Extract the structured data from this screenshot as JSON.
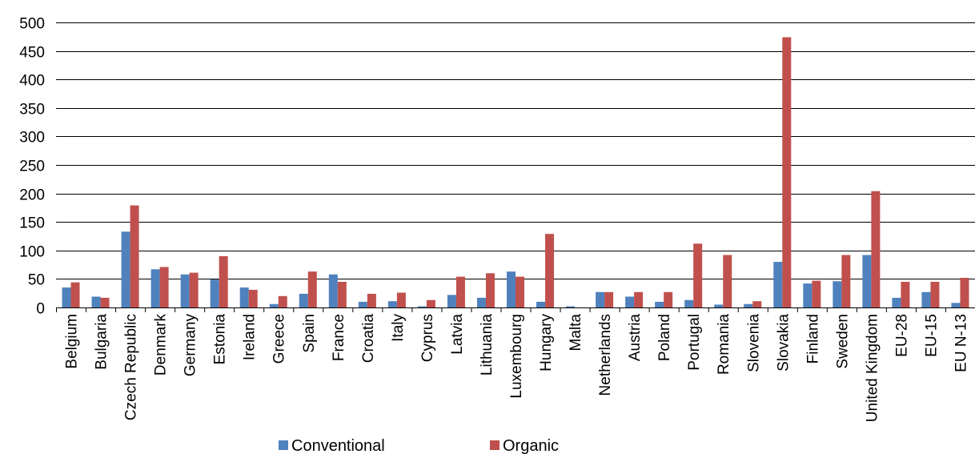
{
  "chart_data": {
    "type": "bar",
    "title": "",
    "xlabel": "",
    "ylabel": "",
    "ylim": [
      0,
      500
    ],
    "yticks": [
      0,
      50,
      100,
      150,
      200,
      250,
      300,
      350,
      400,
      450,
      500
    ],
    "grid": true,
    "legend_position": "bottom",
    "categories": [
      "Belgium",
      "Bulgaria",
      "Czech Republic",
      "Denmark",
      "Germany",
      "Estonia",
      "Ireland",
      "Greece",
      "Spain",
      "France",
      "Croatia",
      "Italy",
      "Cyprus",
      "Latvia",
      "Lithuania",
      "Luxembourg",
      "Hungary",
      "Malta",
      "Netherlands",
      "Austria",
      "Poland",
      "Portugal",
      "Romania",
      "Slovenia",
      "Slovakia",
      "Finland",
      "Sweden",
      "United Kingdom",
      "EU-28",
      "EU-15",
      "EU N-13"
    ],
    "series": [
      {
        "name": "Conventional",
        "color": "#4F81BD",
        "values": [
          35,
          19,
          133,
          67,
          58,
          49,
          35,
          6,
          24,
          58,
          10,
          11,
          2,
          22,
          17,
          63,
          10,
          2,
          27,
          19,
          10,
          13,
          5,
          6,
          80,
          42,
          46,
          92,
          17,
          27,
          8
        ]
      },
      {
        "name": "Organic",
        "color": "#C0504D",
        "values": [
          44,
          17,
          179,
          71,
          61,
          90,
          31,
          20,
          63,
          45,
          24,
          26,
          13,
          54,
          60,
          54,
          129,
          0,
          27,
          27,
          27,
          112,
          92,
          11,
          474,
          47,
          92,
          204,
          45,
          45,
          52
        ]
      }
    ]
  }
}
